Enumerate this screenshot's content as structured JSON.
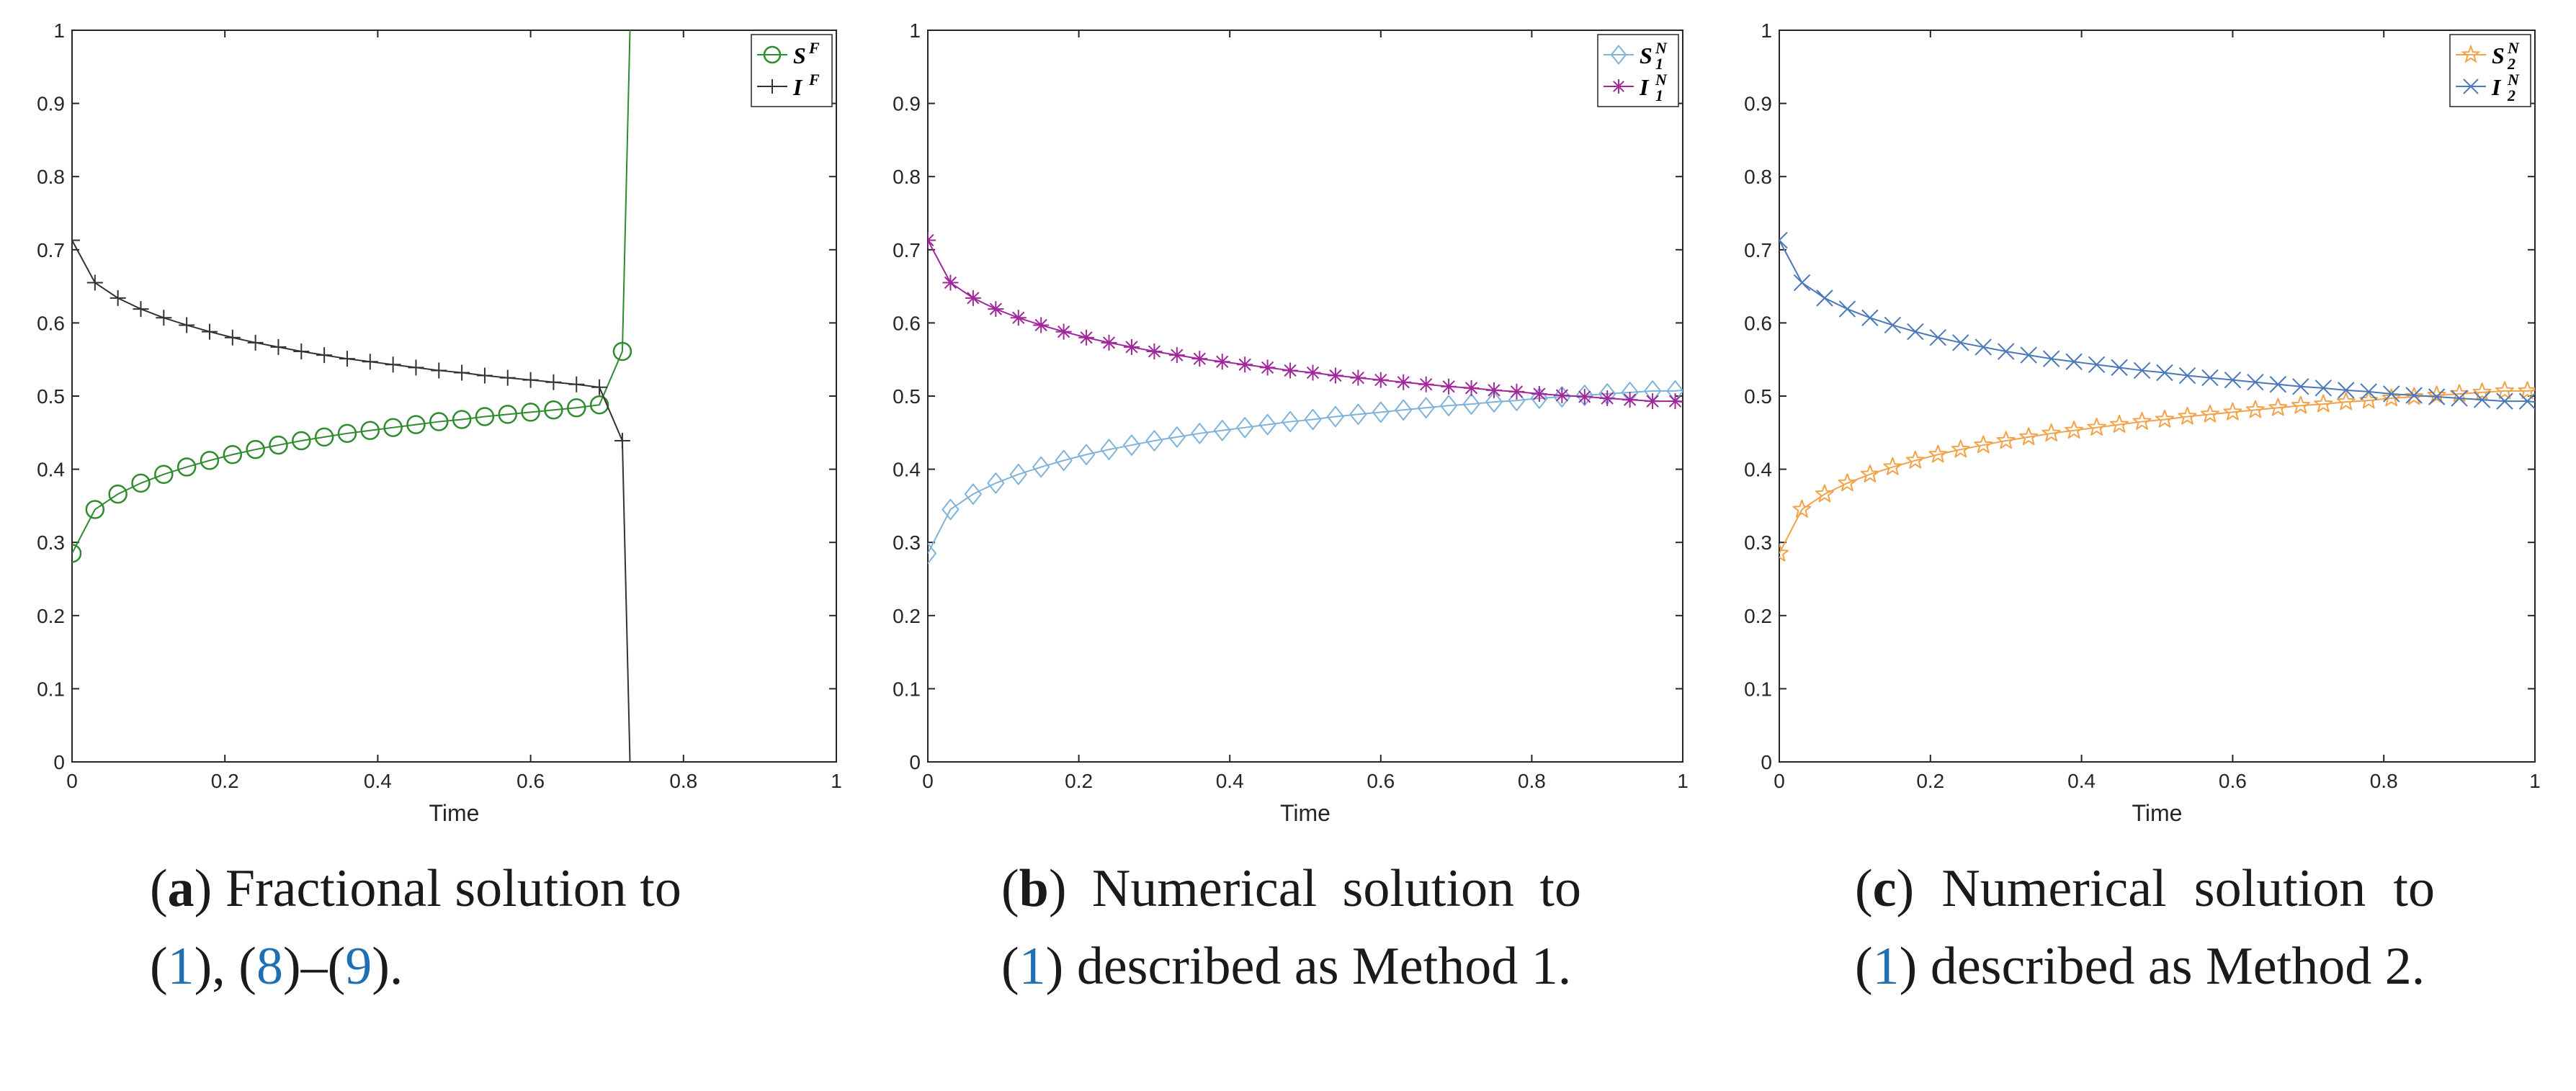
{
  "colors": {
    "axis": "#262626",
    "green": "#2e8b2e",
    "black": "#333333",
    "lightblue": "#7fb3d8",
    "purple": "#a0289a",
    "orange": "#f2a34a",
    "blue": "#4a78b8",
    "ref": "#1f6fb5"
  },
  "captions": [
    {
      "label": "a",
      "part1": "Fractional solution to",
      "ref1": "1",
      "sep1": "), (",
      "ref2": "8",
      "sep2": ")–(",
      "ref3": "9",
      "end": ")."
    },
    {
      "label": "b",
      "part1": "Numerical solution to",
      "ref1": "1",
      "part2": "described as Method 1."
    },
    {
      "label": "c",
      "part1": "Numerical solution to",
      "ref1": "1",
      "part2": "described as Method 2."
    }
  ],
  "chart_data": [
    {
      "type": "line",
      "panel": "a",
      "title": "",
      "xlabel": "Time",
      "ylabel": "",
      "xlim": [
        0,
        1
      ],
      "ylim": [
        0,
        1
      ],
      "xticks": [
        "0",
        "0.2",
        "0.4",
        "0.6",
        "0.8",
        "1"
      ],
      "yticks": [
        "0",
        "0.1",
        "0.2",
        "0.3",
        "0.4",
        "0.5",
        "0.6",
        "0.7",
        "0.8",
        "0.9",
        "1"
      ],
      "legend_position": "top-right",
      "series": [
        {
          "name": "S",
          "sup": "F",
          "sub": "",
          "marker": "circle",
          "color": "#2e8b2e",
          "x": [
            0,
            0.03,
            0.06,
            0.09,
            0.12,
            0.15,
            0.18,
            0.21,
            0.24,
            0.27,
            0.3,
            0.33,
            0.36,
            0.39,
            0.42,
            0.45,
            0.48,
            0.51,
            0.54,
            0.57,
            0.6,
            0.63,
            0.66,
            0.69,
            0.72,
            0.73
          ],
          "y": [
            0.285,
            0.345,
            0.366,
            0.381,
            0.393,
            0.403,
            0.412,
            0.42,
            0.427,
            0.433,
            0.439,
            0.444,
            0.449,
            0.453,
            0.457,
            0.461,
            0.465,
            0.468,
            0.472,
            0.475,
            0.478,
            0.481,
            0.484,
            0.488,
            0.561,
            1.0
          ],
          "marker_count": 25
        },
        {
          "name": "I",
          "sup": "F",
          "sub": "",
          "marker": "plus",
          "color": "#333333",
          "x": [
            0,
            0.03,
            0.06,
            0.09,
            0.12,
            0.15,
            0.18,
            0.21,
            0.24,
            0.27,
            0.3,
            0.33,
            0.36,
            0.39,
            0.42,
            0.45,
            0.48,
            0.51,
            0.54,
            0.57,
            0.6,
            0.63,
            0.66,
            0.69,
            0.72,
            0.73
          ],
          "y": [
            0.713,
            0.655,
            0.634,
            0.619,
            0.607,
            0.597,
            0.588,
            0.58,
            0.573,
            0.567,
            0.561,
            0.556,
            0.551,
            0.547,
            0.543,
            0.539,
            0.535,
            0.532,
            0.528,
            0.525,
            0.522,
            0.519,
            0.516,
            0.512,
            0.439,
            0.0
          ],
          "marker_count": 25
        }
      ]
    },
    {
      "type": "line",
      "panel": "b",
      "title": "",
      "xlabel": "Time",
      "ylabel": "",
      "xlim": [
        0,
        1
      ],
      "ylim": [
        0,
        1
      ],
      "xticks": [
        "0",
        "0.2",
        "0.4",
        "0.6",
        "0.8",
        "1"
      ],
      "yticks": [
        "0",
        "0.1",
        "0.2",
        "0.3",
        "0.4",
        "0.5",
        "0.6",
        "0.7",
        "0.8",
        "0.9",
        "1"
      ],
      "legend_position": "top-right",
      "series": [
        {
          "name": "S",
          "sup": "N",
          "sub": "1",
          "marker": "diamond",
          "color": "#7fb3d8",
          "x": [
            0,
            0.03,
            0.06,
            0.09,
            0.12,
            0.15,
            0.18,
            0.21,
            0.24,
            0.27,
            0.3,
            0.33,
            0.36,
            0.39,
            0.42,
            0.45,
            0.48,
            0.51,
            0.54,
            0.57,
            0.6,
            0.63,
            0.66,
            0.69,
            0.72,
            0.75,
            0.78,
            0.81,
            0.84,
            0.87,
            0.9,
            0.93,
            0.96,
            0.99,
            1.0
          ],
          "y": [
            0.285,
            0.345,
            0.366,
            0.381,
            0.393,
            0.403,
            0.412,
            0.42,
            0.427,
            0.433,
            0.439,
            0.444,
            0.449,
            0.453,
            0.457,
            0.461,
            0.465,
            0.468,
            0.472,
            0.475,
            0.478,
            0.481,
            0.484,
            0.487,
            0.489,
            0.492,
            0.494,
            0.497,
            0.499,
            0.501,
            0.503,
            0.505,
            0.507,
            0.507,
            0.508
          ],
          "marker_count": 34
        },
        {
          "name": "I",
          "sup": "N",
          "sub": "1",
          "marker": "asterisk",
          "color": "#a0289a",
          "x": [
            0,
            0.03,
            0.06,
            0.09,
            0.12,
            0.15,
            0.18,
            0.21,
            0.24,
            0.27,
            0.3,
            0.33,
            0.36,
            0.39,
            0.42,
            0.45,
            0.48,
            0.51,
            0.54,
            0.57,
            0.6,
            0.63,
            0.66,
            0.69,
            0.72,
            0.75,
            0.78,
            0.81,
            0.84,
            0.87,
            0.9,
            0.93,
            0.96,
            0.99,
            1.0
          ],
          "y": [
            0.713,
            0.655,
            0.634,
            0.619,
            0.607,
            0.597,
            0.588,
            0.58,
            0.573,
            0.567,
            0.561,
            0.556,
            0.551,
            0.547,
            0.543,
            0.539,
            0.535,
            0.532,
            0.528,
            0.525,
            0.522,
            0.519,
            0.516,
            0.513,
            0.511,
            0.508,
            0.506,
            0.503,
            0.501,
            0.499,
            0.497,
            0.495,
            0.493,
            0.493,
            0.492
          ],
          "marker_count": 34
        }
      ]
    },
    {
      "type": "line",
      "panel": "c",
      "title": "",
      "xlabel": "Time",
      "ylabel": "",
      "xlim": [
        0,
        1
      ],
      "ylim": [
        0,
        1
      ],
      "xticks": [
        "0",
        "0.2",
        "0.4",
        "0.6",
        "0.8",
        "1"
      ],
      "yticks": [
        "0",
        "0.1",
        "0.2",
        "0.3",
        "0.4",
        "0.5",
        "0.6",
        "0.7",
        "0.8",
        "0.9",
        "1"
      ],
      "legend_position": "top-right",
      "series": [
        {
          "name": "S",
          "sup": "N",
          "sub": "2",
          "marker": "pentagram",
          "color": "#f2a34a",
          "x": [
            0,
            0.03,
            0.06,
            0.09,
            0.12,
            0.15,
            0.18,
            0.21,
            0.24,
            0.27,
            0.3,
            0.33,
            0.36,
            0.39,
            0.42,
            0.45,
            0.48,
            0.51,
            0.54,
            0.57,
            0.6,
            0.63,
            0.66,
            0.69,
            0.72,
            0.75,
            0.78,
            0.81,
            0.84,
            0.87,
            0.9,
            0.93,
            0.96,
            0.99,
            1.0
          ],
          "y": [
            0.285,
            0.345,
            0.366,
            0.381,
            0.393,
            0.403,
            0.412,
            0.42,
            0.427,
            0.433,
            0.439,
            0.444,
            0.449,
            0.453,
            0.457,
            0.461,
            0.465,
            0.468,
            0.472,
            0.475,
            0.478,
            0.481,
            0.484,
            0.487,
            0.489,
            0.492,
            0.494,
            0.497,
            0.499,
            0.501,
            0.503,
            0.505,
            0.507,
            0.507,
            0.508
          ],
          "marker_count": 34
        },
        {
          "name": "I",
          "sup": "N",
          "sub": "2",
          "marker": "x",
          "color": "#4a78b8",
          "x": [
            0,
            0.03,
            0.06,
            0.09,
            0.12,
            0.15,
            0.18,
            0.21,
            0.24,
            0.27,
            0.3,
            0.33,
            0.36,
            0.39,
            0.42,
            0.45,
            0.48,
            0.51,
            0.54,
            0.57,
            0.6,
            0.63,
            0.66,
            0.69,
            0.72,
            0.75,
            0.78,
            0.81,
            0.84,
            0.87,
            0.9,
            0.93,
            0.96,
            0.99,
            1.0
          ],
          "y": [
            0.713,
            0.655,
            0.634,
            0.619,
            0.607,
            0.597,
            0.588,
            0.58,
            0.573,
            0.567,
            0.561,
            0.556,
            0.551,
            0.547,
            0.543,
            0.539,
            0.535,
            0.532,
            0.528,
            0.525,
            0.522,
            0.519,
            0.516,
            0.513,
            0.511,
            0.508,
            0.506,
            0.503,
            0.501,
            0.499,
            0.497,
            0.495,
            0.493,
            0.493,
            0.492
          ],
          "marker_count": 34
        }
      ]
    }
  ]
}
